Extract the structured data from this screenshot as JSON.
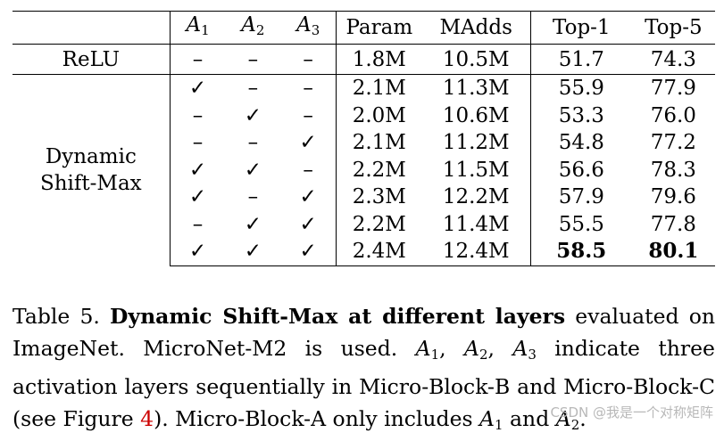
{
  "table": {
    "headers": {
      "method": "",
      "a1": "A",
      "a1_sub": "1",
      "a2": "A",
      "a2_sub": "2",
      "a3": "A",
      "a3_sub": "3",
      "param": "Param",
      "madds": "MAdds",
      "top1": "Top-1",
      "top5": "Top-5"
    },
    "relu": {
      "method": "ReLU",
      "a1": "–",
      "a2": "–",
      "a3": "–",
      "param": "1.8M",
      "madds": "10.5M",
      "top1": "51.7",
      "top5": "74.3"
    },
    "dynamic": {
      "method_line1": "Dynamic",
      "method_line2": "Shift-Max",
      "rows": [
        {
          "a1": "✓",
          "a2": "–",
          "a3": "–",
          "param": "2.1M",
          "madds": "11.3M",
          "top1": "55.9",
          "top5": "77.9"
        },
        {
          "a1": "–",
          "a2": "✓",
          "a3": "–",
          "param": "2.0M",
          "madds": "10.6M",
          "top1": "53.3",
          "top5": "76.0"
        },
        {
          "a1": "–",
          "a2": "–",
          "a3": "✓",
          "param": "2.1M",
          "madds": "11.2M",
          "top1": "54.8",
          "top5": "77.2"
        },
        {
          "a1": "✓",
          "a2": "✓",
          "a3": "–",
          "param": "2.2M",
          "madds": "11.5M",
          "top1": "56.6",
          "top5": "78.3"
        },
        {
          "a1": "✓",
          "a2": "–",
          "a3": "✓",
          "param": "2.3M",
          "madds": "12.2M",
          "top1": "57.9",
          "top5": "79.6"
        },
        {
          "a1": "–",
          "a2": "✓",
          "a3": "✓",
          "param": "2.2M",
          "madds": "11.4M",
          "top1": "55.5",
          "top5": "77.8"
        },
        {
          "a1": "✓",
          "a2": "✓",
          "a3": "✓",
          "param": "2.4M",
          "madds": "12.4M",
          "top1": "58.5",
          "top5": "80.1"
        }
      ]
    }
  },
  "caption": {
    "prefix": "Table 5. ",
    "title": "Dynamic Shift-Max at different layers",
    "part1": " evaluated on ImageNet. MicroNet-M2 is used. ",
    "a1": "A",
    "a1_sub": "1",
    "sep1": ", ",
    "a2": "A",
    "a2_sub": "2",
    "sep2": ", ",
    "a3": "A",
    "a3_sub": "3",
    "part2": " indicate three activation layers sequentially in Micro-Block-B and Micro-Block-C (see Figure ",
    "ref": "4",
    "part3": "). Micro-Block-A only includes ",
    "b1": "A",
    "b1_sub": "1",
    "part4": " and ",
    "b2": "A",
    "b2_sub": "2",
    "part5": "."
  },
  "watermark": "CSDN @我是一个对称矩阵"
}
